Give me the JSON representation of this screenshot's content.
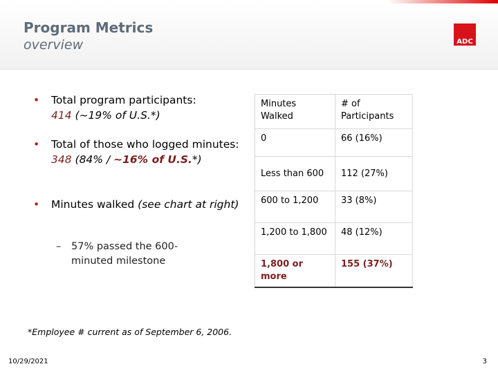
{
  "header": {
    "title": "Program Metrics",
    "subtitle": "overview",
    "logo": "ADC"
  },
  "bullets": [
    {
      "parts": [
        "Total program participants:",
        "414",
        " (~19% of U.S.*)"
      ]
    },
    {
      "parts": [
        "Total of those who logged minutes:",
        "348",
        " (84% / ",
        "~16% of U.S.",
        "*)"
      ]
    },
    {
      "parts": [
        "Minutes walked ",
        "(see chart at right)"
      ],
      "sub": [
        "57% passed the 600-minuted milestone"
      ]
    }
  ],
  "table": {
    "header": [
      "Minutes Walked",
      "# of Participants"
    ],
    "rows": [
      [
        "0",
        "66 (16%)"
      ],
      [
        "Less than 600",
        "112 (27%)"
      ],
      [
        "600 to 1,200",
        "33 (8%)"
      ],
      [
        "1,200 to 1,800",
        "48 (12%)"
      ],
      [
        "1,800 or more",
        "155 (37%)"
      ]
    ]
  },
  "footnote": "*Employee # current as of September 6, 2006.",
  "footer": {
    "date": "10/29/2021",
    "page": "3"
  }
}
